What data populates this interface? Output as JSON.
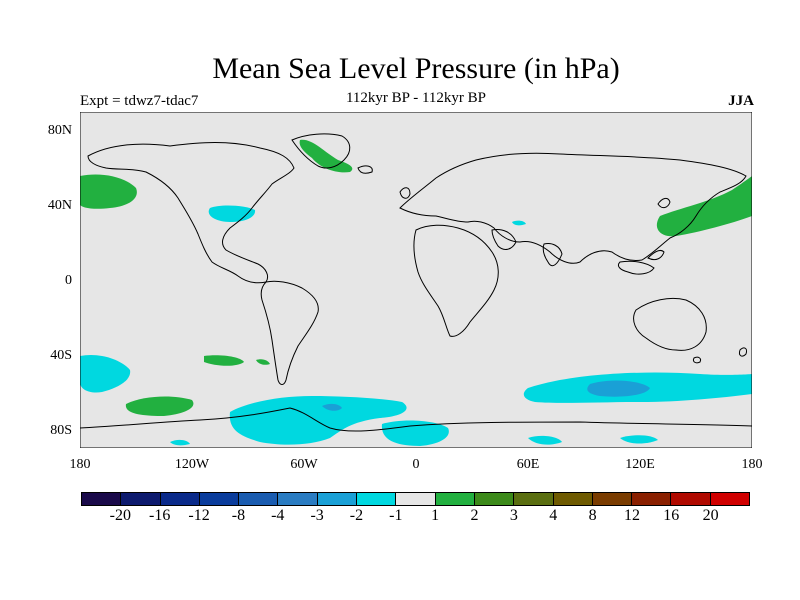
{
  "title": "Mean Sea Level Pressure (in hPa)",
  "subtitle_left": "Expt = tdwz7-tdac7",
  "subtitle_center": "112kyr BP - 112kyr BP",
  "subtitle_right": "JJA",
  "lat_labels": [
    "80N",
    "40N",
    "0",
    "40S",
    "80S"
  ],
  "lon_labels": [
    "180",
    "120W",
    "60W",
    "0",
    "60E",
    "120E",
    "180"
  ],
  "colorbar": {
    "colors": [
      "#1a0a4a",
      "#0d1a6e",
      "#0a2a8a",
      "#0a3c9c",
      "#1a5cb0",
      "#2a7cc2",
      "#1aa0d6",
      "#00d8e0",
      "#e6e6e6",
      "#22b040",
      "#3c8a1a",
      "#5a6e10",
      "#6e5a00",
      "#7a3c00",
      "#8a2000",
      "#b00a00",
      "#d00000"
    ],
    "labels": [
      "-20",
      "-16",
      "-12",
      "-8",
      "-4",
      "-3",
      "-2",
      "-1",
      "1",
      "2",
      "3",
      "4",
      "8",
      "12",
      "16",
      "20"
    ]
  },
  "map": {
    "background": "#e6e6e6",
    "land_outline": "#000000",
    "negative_fill": "#00d8e0",
    "negative_strong_fill": "#1aa0d6",
    "positive_fill": "#22b040"
  }
}
